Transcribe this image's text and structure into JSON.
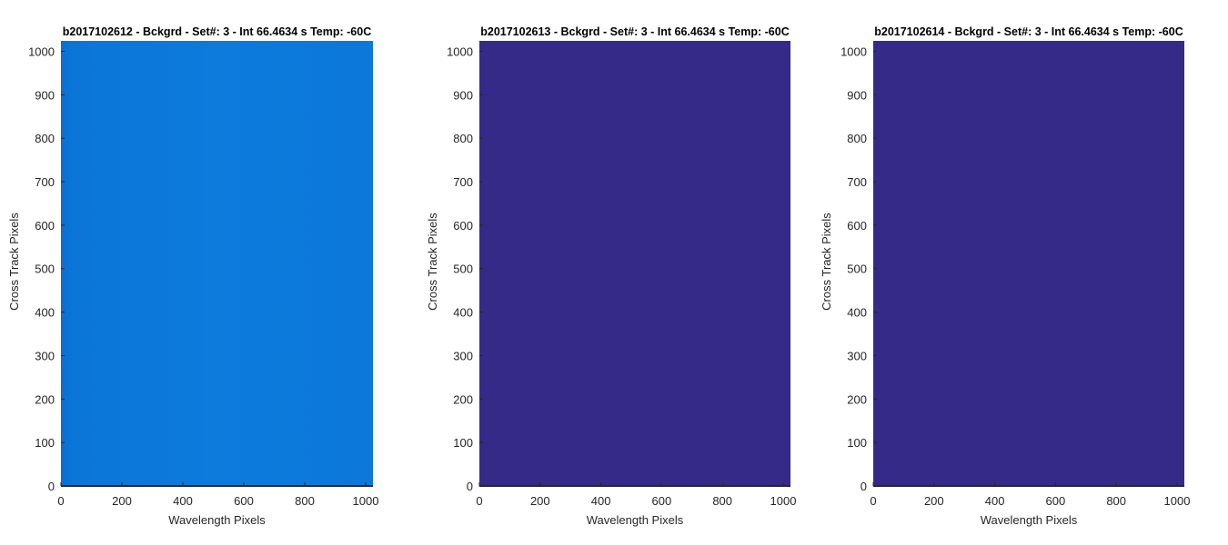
{
  "chart_data": [
    {
      "type": "heatmap",
      "title": "b2017102612 - Bckgrd - Set#: 3 - Int 66.4634 s Temp: -60C",
      "xlabel": "Wavelength Pixels",
      "ylabel": "Cross Track Pixels",
      "xlim": [
        0,
        1024
      ],
      "ylim": [
        0,
        1024
      ],
      "xticks": [
        0,
        200,
        400,
        600,
        800,
        1000
      ],
      "yticks": [
        0,
        100,
        200,
        300,
        400,
        500,
        600,
        700,
        800,
        900,
        1000
      ],
      "fill_color": "#0b77d8",
      "grid": false
    },
    {
      "type": "heatmap",
      "title": "b2017102613 - Bckgrd - Set#: 3 - Int 66.4634 s Temp: -60C",
      "xlabel": "Wavelength Pixels",
      "ylabel": "Cross Track Pixels",
      "xlim": [
        0,
        1024
      ],
      "ylim": [
        0,
        1024
      ],
      "xticks": [
        0,
        200,
        400,
        600,
        800,
        1000
      ],
      "yticks": [
        0,
        100,
        200,
        300,
        400,
        500,
        600,
        700,
        800,
        900,
        1000
      ],
      "fill_color": "#352a87",
      "grid": false
    },
    {
      "type": "heatmap",
      "title": "b2017102614 - Bckgrd - Set#: 3 - Int 66.4634 s Temp: -60C",
      "xlabel": "Wavelength Pixels",
      "ylabel": "Cross Track Pixels",
      "xlim": [
        0,
        1024
      ],
      "ylim": [
        0,
        1024
      ],
      "xticks": [
        0,
        200,
        400,
        600,
        800,
        1000
      ],
      "yticks": [
        0,
        100,
        200,
        300,
        400,
        500,
        600,
        700,
        800,
        900,
        1000
      ],
      "fill_color": "#352a87",
      "grid": false
    }
  ]
}
